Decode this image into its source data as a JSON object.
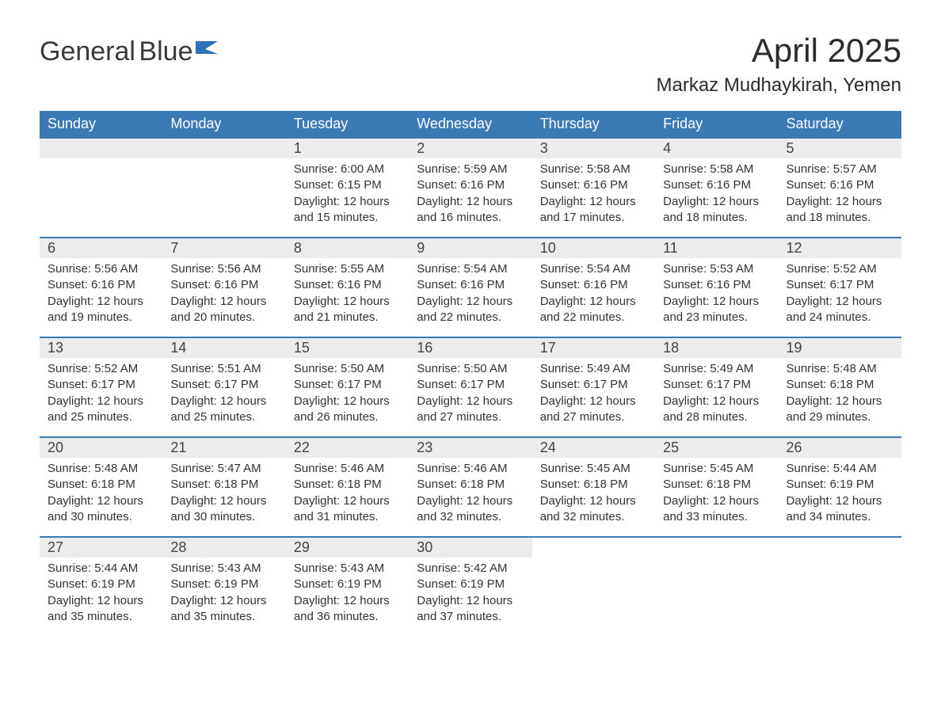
{
  "logo": {
    "word1": "General",
    "word2": "Blue"
  },
  "title": "April 2025",
  "location": "Markaz Mudhaykirah, Yemen",
  "colors": {
    "header_bg": "#3b79b7",
    "header_text": "#ffffff",
    "daynum_bg": "#ececec",
    "border_top": "#3b79b7",
    "body_text": "#333333",
    "logo_gray": "#3a3a3a",
    "logo_blue": "#2a72b5",
    "page_bg": "#ffffff"
  },
  "typography": {
    "month_title_fontsize": 42,
    "location_fontsize": 24,
    "weekday_fontsize": 18,
    "daynum_fontsize": 18,
    "cell_fontsize": 15,
    "font_family": "Arial"
  },
  "weekdays": [
    "Sunday",
    "Monday",
    "Tuesday",
    "Wednesday",
    "Thursday",
    "Friday",
    "Saturday"
  ],
  "weeks": [
    [
      null,
      null,
      {
        "n": "1",
        "sunrise": "6:00 AM",
        "sunset": "6:15 PM",
        "daylight": "12 hours and 15 minutes."
      },
      {
        "n": "2",
        "sunrise": "5:59 AM",
        "sunset": "6:16 PM",
        "daylight": "12 hours and 16 minutes."
      },
      {
        "n": "3",
        "sunrise": "5:58 AM",
        "sunset": "6:16 PM",
        "daylight": "12 hours and 17 minutes."
      },
      {
        "n": "4",
        "sunrise": "5:58 AM",
        "sunset": "6:16 PM",
        "daylight": "12 hours and 18 minutes."
      },
      {
        "n": "5",
        "sunrise": "5:57 AM",
        "sunset": "6:16 PM",
        "daylight": "12 hours and 18 minutes."
      }
    ],
    [
      {
        "n": "6",
        "sunrise": "5:56 AM",
        "sunset": "6:16 PM",
        "daylight": "12 hours and 19 minutes."
      },
      {
        "n": "7",
        "sunrise": "5:56 AM",
        "sunset": "6:16 PM",
        "daylight": "12 hours and 20 minutes."
      },
      {
        "n": "8",
        "sunrise": "5:55 AM",
        "sunset": "6:16 PM",
        "daylight": "12 hours and 21 minutes."
      },
      {
        "n": "9",
        "sunrise": "5:54 AM",
        "sunset": "6:16 PM",
        "daylight": "12 hours and 22 minutes."
      },
      {
        "n": "10",
        "sunrise": "5:54 AM",
        "sunset": "6:16 PM",
        "daylight": "12 hours and 22 minutes."
      },
      {
        "n": "11",
        "sunrise": "5:53 AM",
        "sunset": "6:16 PM",
        "daylight": "12 hours and 23 minutes."
      },
      {
        "n": "12",
        "sunrise": "5:52 AM",
        "sunset": "6:17 PM",
        "daylight": "12 hours and 24 minutes."
      }
    ],
    [
      {
        "n": "13",
        "sunrise": "5:52 AM",
        "sunset": "6:17 PM",
        "daylight": "12 hours and 25 minutes."
      },
      {
        "n": "14",
        "sunrise": "5:51 AM",
        "sunset": "6:17 PM",
        "daylight": "12 hours and 25 minutes."
      },
      {
        "n": "15",
        "sunrise": "5:50 AM",
        "sunset": "6:17 PM",
        "daylight": "12 hours and 26 minutes."
      },
      {
        "n": "16",
        "sunrise": "5:50 AM",
        "sunset": "6:17 PM",
        "daylight": "12 hours and 27 minutes."
      },
      {
        "n": "17",
        "sunrise": "5:49 AM",
        "sunset": "6:17 PM",
        "daylight": "12 hours and 27 minutes."
      },
      {
        "n": "18",
        "sunrise": "5:49 AM",
        "sunset": "6:17 PM",
        "daylight": "12 hours and 28 minutes."
      },
      {
        "n": "19",
        "sunrise": "5:48 AM",
        "sunset": "6:18 PM",
        "daylight": "12 hours and 29 minutes."
      }
    ],
    [
      {
        "n": "20",
        "sunrise": "5:48 AM",
        "sunset": "6:18 PM",
        "daylight": "12 hours and 30 minutes."
      },
      {
        "n": "21",
        "sunrise": "5:47 AM",
        "sunset": "6:18 PM",
        "daylight": "12 hours and 30 minutes."
      },
      {
        "n": "22",
        "sunrise": "5:46 AM",
        "sunset": "6:18 PM",
        "daylight": "12 hours and 31 minutes."
      },
      {
        "n": "23",
        "sunrise": "5:46 AM",
        "sunset": "6:18 PM",
        "daylight": "12 hours and 32 minutes."
      },
      {
        "n": "24",
        "sunrise": "5:45 AM",
        "sunset": "6:18 PM",
        "daylight": "12 hours and 32 minutes."
      },
      {
        "n": "25",
        "sunrise": "5:45 AM",
        "sunset": "6:18 PM",
        "daylight": "12 hours and 33 minutes."
      },
      {
        "n": "26",
        "sunrise": "5:44 AM",
        "sunset": "6:19 PM",
        "daylight": "12 hours and 34 minutes."
      }
    ],
    [
      {
        "n": "27",
        "sunrise": "5:44 AM",
        "sunset": "6:19 PM",
        "daylight": "12 hours and 35 minutes."
      },
      {
        "n": "28",
        "sunrise": "5:43 AM",
        "sunset": "6:19 PM",
        "daylight": "12 hours and 35 minutes."
      },
      {
        "n": "29",
        "sunrise": "5:43 AM",
        "sunset": "6:19 PM",
        "daylight": "12 hours and 36 minutes."
      },
      {
        "n": "30",
        "sunrise": "5:42 AM",
        "sunset": "6:19 PM",
        "daylight": "12 hours and 37 minutes."
      },
      null,
      null,
      null
    ]
  ],
  "labels": {
    "sunrise": "Sunrise:",
    "sunset": "Sunset:",
    "daylight": "Daylight:"
  }
}
